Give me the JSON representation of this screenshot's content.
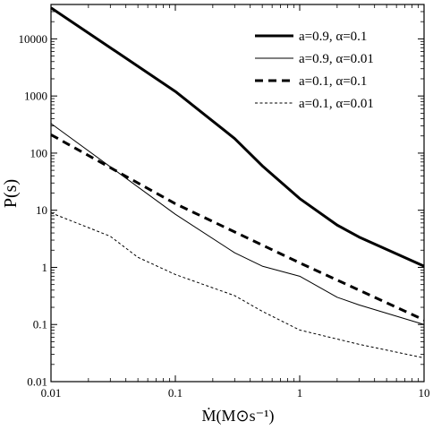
{
  "chart_data": {
    "type": "line",
    "title": "",
    "xlabel": "Ṁ(M⊙s⁻¹)",
    "ylabel": "P(s)",
    "xscale": "log",
    "yscale": "log",
    "xlim": [
      0.01,
      10
    ],
    "ylim": [
      0.01,
      40000
    ],
    "grid": false,
    "legend_position": "top-right",
    "x_ticks": [
      "0.01",
      "0.1",
      "1",
      "10"
    ],
    "y_ticks": [
      "0.01",
      "0.1",
      "1",
      "10",
      "100",
      "1000",
      "10000"
    ],
    "series": [
      {
        "name": "a=0.9, α=0.1",
        "style": "thick-solid",
        "color": "#000000",
        "x": [
          0.01,
          0.1,
          0.3,
          0.5,
          1,
          2,
          3,
          10
        ],
        "y": [
          35000,
          1200,
          180,
          60,
          16,
          5.5,
          3.4,
          1.05
        ]
      },
      {
        "name": "a=0.9, α=0.01",
        "style": "thin-solid",
        "color": "#000000",
        "x": [
          0.01,
          0.1,
          0.3,
          0.5,
          1,
          2,
          3,
          10
        ],
        "y": [
          330,
          8.5,
          1.8,
          1.05,
          0.7,
          0.3,
          0.22,
          0.1
        ]
      },
      {
        "name": "a=0.1, α=0.1",
        "style": "thick-dashed",
        "color": "#000000",
        "x": [
          0.01,
          0.1,
          1,
          10
        ],
        "y": [
          210,
          13,
          1.2,
          0.12
        ]
      },
      {
        "name": "a=0.1, α=0.01",
        "style": "thin-dotted",
        "color": "#000000",
        "x": [
          0.01,
          0.03,
          0.05,
          0.1,
          0.3,
          0.5,
          1,
          3,
          10
        ],
        "y": [
          9,
          3.5,
          1.5,
          0.75,
          0.32,
          0.17,
          0.08,
          0.045,
          0.026
        ]
      }
    ]
  }
}
